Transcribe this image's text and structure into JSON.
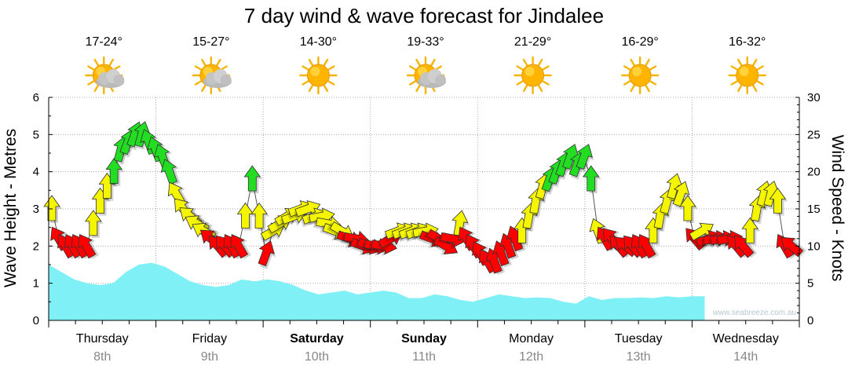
{
  "chart_data": {
    "type": "area+arrows",
    "title": "7 day wind & wave forecast for Jindalee",
    "ylabel_left": "Wave Height - Metres",
    "ylabel_right": "Wind Speed - Knots",
    "ylim_left": [
      0,
      6
    ],
    "ylim_right": [
      0,
      30
    ],
    "yticks_left": [
      "0",
      "1",
      "2",
      "3",
      "4",
      "5",
      "6"
    ],
    "yticks_right": [
      "0",
      "5",
      "10",
      "15",
      "20",
      "25",
      "30"
    ],
    "grid": true,
    "watermark": "www.seabreeze.com.au",
    "wind_colors": {
      "low": "#ff0000",
      "mid": "#f5f500",
      "high": "#22dd22",
      "wave": "#7ff0f5"
    },
    "days": [
      {
        "name": "Thursday",
        "date": "8th",
        "temp": "17-24°",
        "weather": "partly-cloudy",
        "bold": false
      },
      {
        "name": "Friday",
        "date": "9th",
        "temp": "15-27°",
        "weather": "partly-cloudy",
        "bold": false
      },
      {
        "name": "Saturday",
        "date": "10th",
        "temp": "14-30°",
        "weather": "sunny",
        "bold": true
      },
      {
        "name": "Sunday",
        "date": "11th",
        "temp": "19-33°",
        "weather": "partly-cloudy",
        "bold": true
      },
      {
        "name": "Monday",
        "date": "12th",
        "temp": "21-29°",
        "weather": "sunny",
        "bold": false
      },
      {
        "name": "Tuesday",
        "date": "13th",
        "temp": "16-29°",
        "weather": "sunny",
        "bold": false
      },
      {
        "name": "Wednesday",
        "date": "14th",
        "temp": "16-32°",
        "weather": "sunny",
        "bold": false
      }
    ],
    "wave_height_m": [
      1.5,
      1.3,
      1.1,
      1.0,
      0.95,
      1.0,
      1.3,
      1.5,
      1.55,
      1.45,
      1.25,
      1.05,
      0.95,
      0.9,
      0.95,
      1.1,
      1.05,
      1.1,
      1.05,
      0.95,
      0.8,
      0.7,
      0.75,
      0.8,
      0.7,
      0.75,
      0.8,
      0.75,
      0.6,
      0.6,
      0.7,
      0.65,
      0.55,
      0.5,
      0.6,
      0.7,
      0.65,
      0.6,
      0.62,
      0.6,
      0.5,
      0.45,
      0.65,
      0.55,
      0.6,
      0.6,
      0.62,
      0.6,
      0.65,
      0.62,
      0.65,
      0.65
    ],
    "wind": {
      "note": "knots and direction (degrees the arrow points, clockwise from up)",
      "series": [
        {
          "kt": 15,
          "dir": 0
        },
        {
          "kt": 11,
          "dir": 330
        },
        {
          "kt": 10,
          "dir": 330
        },
        {
          "kt": 10,
          "dir": 330
        },
        {
          "kt": 10,
          "dir": 330
        },
        {
          "kt": 10,
          "dir": 330
        },
        {
          "kt": 13,
          "dir": 0
        },
        {
          "kt": 16,
          "dir": 0
        },
        {
          "kt": 18,
          "dir": 0
        },
        {
          "kt": 20,
          "dir": 0
        },
        {
          "kt": 23,
          "dir": 15
        },
        {
          "kt": 24,
          "dir": 20
        },
        {
          "kt": 25,
          "dir": 20
        },
        {
          "kt": 25,
          "dir": 15
        },
        {
          "kt": 24,
          "dir": 340
        },
        {
          "kt": 23,
          "dir": 340
        },
        {
          "kt": 22,
          "dir": 340
        },
        {
          "kt": 20,
          "dir": 340
        },
        {
          "kt": 17,
          "dir": 330
        },
        {
          "kt": 15,
          "dir": 320
        },
        {
          "kt": 14,
          "dir": 310
        },
        {
          "kt": 13,
          "dir": 300
        },
        {
          "kt": 12,
          "dir": 300
        },
        {
          "kt": 11,
          "dir": 310
        },
        {
          "kt": 10,
          "dir": 320
        },
        {
          "kt": 10,
          "dir": 320
        },
        {
          "kt": 10,
          "dir": 330
        },
        {
          "kt": 10,
          "dir": 330
        },
        {
          "kt": 14,
          "dir": 0
        },
        {
          "kt": 19,
          "dir": 0
        },
        {
          "kt": 14,
          "dir": 0
        },
        {
          "kt": 9,
          "dir": 20
        },
        {
          "kt": 12,
          "dir": 60
        },
        {
          "kt": 13,
          "dir": 60
        },
        {
          "kt": 14,
          "dir": 60
        },
        {
          "kt": 14,
          "dir": 70
        },
        {
          "kt": 15,
          "dir": 70
        },
        {
          "kt": 15,
          "dir": 70
        },
        {
          "kt": 14,
          "dir": 70
        },
        {
          "kt": 14,
          "dir": 80
        },
        {
          "kt": 13,
          "dir": 100
        },
        {
          "kt": 12,
          "dir": 110
        },
        {
          "kt": 12,
          "dir": 120
        },
        {
          "kt": 11,
          "dir": 110
        },
        {
          "kt": 11,
          "dir": 100
        },
        {
          "kt": 10,
          "dir": 110
        },
        {
          "kt": 10,
          "dir": 110
        },
        {
          "kt": 10,
          "dir": 100
        },
        {
          "kt": 10,
          "dir": 100
        },
        {
          "kt": 11,
          "dir": 60
        },
        {
          "kt": 12,
          "dir": 70
        },
        {
          "kt": 12,
          "dir": 70
        },
        {
          "kt": 12,
          "dir": 70
        },
        {
          "kt": 12,
          "dir": 70
        },
        {
          "kt": 12,
          "dir": 80
        },
        {
          "kt": 11,
          "dir": 110
        },
        {
          "kt": 11,
          "dir": 120
        },
        {
          "kt": 10,
          "dir": 120
        },
        {
          "kt": 11,
          "dir": 100
        },
        {
          "kt": 13,
          "dir": 10
        },
        {
          "kt": 11,
          "dir": 330
        },
        {
          "kt": 10,
          "dir": 330
        },
        {
          "kt": 9,
          "dir": 330
        },
        {
          "kt": 8,
          "dir": 330
        },
        {
          "kt": 8,
          "dir": 340
        },
        {
          "kt": 9,
          "dir": 340
        },
        {
          "kt": 10,
          "dir": 340
        },
        {
          "kt": 11,
          "dir": 340
        },
        {
          "kt": 12,
          "dir": 0
        },
        {
          "kt": 14,
          "dir": 10
        },
        {
          "kt": 16,
          "dir": 10
        },
        {
          "kt": 18,
          "dir": 15
        },
        {
          "kt": 19,
          "dir": 20
        },
        {
          "kt": 20,
          "dir": 20
        },
        {
          "kt": 21,
          "dir": 20
        },
        {
          "kt": 22,
          "dir": 20
        },
        {
          "kt": 21,
          "dir": 20
        },
        {
          "kt": 22,
          "dir": 20
        },
        {
          "kt": 19,
          "dir": 0
        },
        {
          "kt": 12,
          "dir": 340
        },
        {
          "kt": 11,
          "dir": 330
        },
        {
          "kt": 11,
          "dir": 320
        },
        {
          "kt": 10,
          "dir": 320
        },
        {
          "kt": 10,
          "dir": 310
        },
        {
          "kt": 10,
          "dir": 320
        },
        {
          "kt": 10,
          "dir": 330
        },
        {
          "kt": 10,
          "dir": 330
        },
        {
          "kt": 12,
          "dir": 0
        },
        {
          "kt": 14,
          "dir": 10
        },
        {
          "kt": 16,
          "dir": 15
        },
        {
          "kt": 18,
          "dir": 15
        },
        {
          "kt": 17,
          "dir": 20
        },
        {
          "kt": 15,
          "dir": 0
        },
        {
          "kt": 11,
          "dir": 320
        },
        {
          "kt": 12,
          "dir": 60
        },
        {
          "kt": 11,
          "dir": 70
        },
        {
          "kt": 11,
          "dir": 80
        },
        {
          "kt": 11,
          "dir": 80
        },
        {
          "kt": 11,
          "dir": 80
        },
        {
          "kt": 10,
          "dir": 320
        },
        {
          "kt": 10,
          "dir": 320
        },
        {
          "kt": 12,
          "dir": 0
        },
        {
          "kt": 15,
          "dir": 10
        },
        {
          "kt": 17,
          "dir": 15
        },
        {
          "kt": 17,
          "dir": 15
        },
        {
          "kt": 16,
          "dir": 0
        },
        {
          "kt": 10,
          "dir": 330
        },
        {
          "kt": 10,
          "dir": 310
        }
      ]
    }
  }
}
